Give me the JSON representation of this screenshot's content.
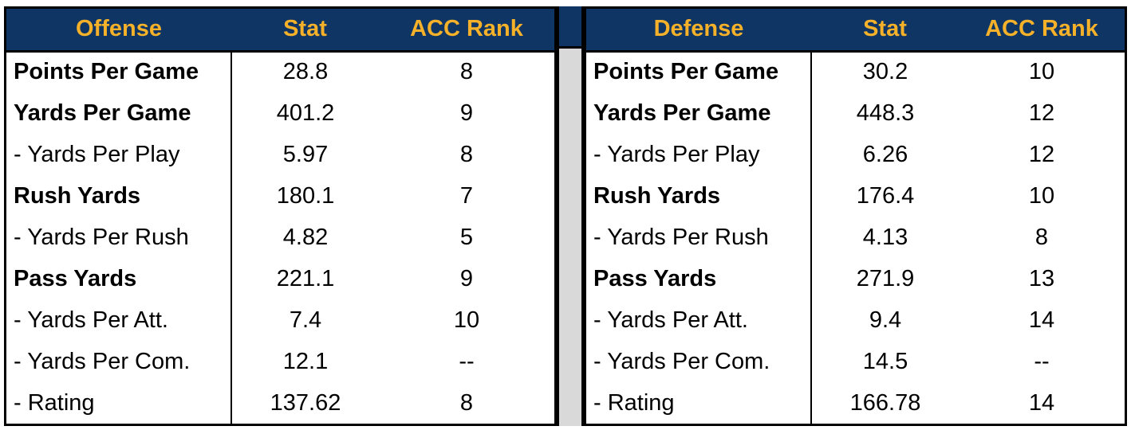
{
  "offense": {
    "headers": [
      "Offense",
      "Stat",
      "ACC Rank"
    ],
    "rows": [
      {
        "label": "Points Per Game",
        "bold": true,
        "stat": "28.8",
        "rank": "8"
      },
      {
        "label": "Yards Per Game",
        "bold": true,
        "stat": "401.2",
        "rank": "9"
      },
      {
        "label": "- Yards Per Play",
        "bold": false,
        "stat": "5.97",
        "rank": "8"
      },
      {
        "label": "Rush Yards",
        "bold": true,
        "stat": "180.1",
        "rank": "7"
      },
      {
        "label": "- Yards Per Rush",
        "bold": false,
        "stat": "4.82",
        "rank": "5"
      },
      {
        "label": "Pass Yards",
        "bold": true,
        "stat": "221.1",
        "rank": "9"
      },
      {
        "label": "- Yards Per Att.",
        "bold": false,
        "stat": "7.4",
        "rank": "10"
      },
      {
        "label": "- Yards Per Com.",
        "bold": false,
        "stat": "12.1",
        "rank": "--"
      },
      {
        "label": "- Rating",
        "bold": false,
        "stat": "137.62",
        "rank": "8"
      }
    ]
  },
  "defense": {
    "headers": [
      "Defense",
      "Stat",
      "ACC Rank"
    ],
    "rows": [
      {
        "label": "Points Per Game",
        "bold": true,
        "stat": "30.2",
        "rank": "10"
      },
      {
        "label": "Yards Per Game",
        "bold": true,
        "stat": "448.3",
        "rank": "12"
      },
      {
        "label": "- Yards Per Play",
        "bold": false,
        "stat": "6.26",
        "rank": "12"
      },
      {
        "label": "Rush Yards",
        "bold": true,
        "stat": "176.4",
        "rank": "10"
      },
      {
        "label": "- Yards Per Rush",
        "bold": false,
        "stat": "4.13",
        "rank": "8"
      },
      {
        "label": "Pass Yards",
        "bold": true,
        "stat": "271.9",
        "rank": "13"
      },
      {
        "label": "- Yards Per Att.",
        "bold": false,
        "stat": "9.4",
        "rank": "14"
      },
      {
        "label": "- Yards Per Com.",
        "bold": false,
        "stat": "14.5",
        "rank": "--"
      },
      {
        "label": "- Rating",
        "bold": false,
        "stat": "166.78",
        "rank": "14"
      }
    ]
  },
  "colors": {
    "header_bg": "#0e3563",
    "header_text": "#f5b12a",
    "divider_fill": "#d9d9d9"
  }
}
